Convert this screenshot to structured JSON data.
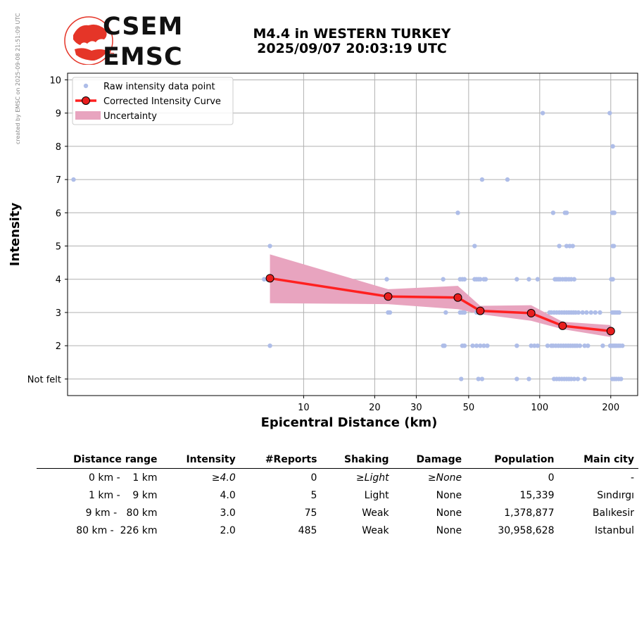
{
  "credit": "created by EMSC on 2025-09-08 21:51:09 UTC",
  "logo": {
    "line1": "CSEM",
    "line2": "EMSC"
  },
  "title": {
    "line1": "M4.4 in WESTERN TURKEY",
    "line2": "2025/09/07 20:03:19 UTC"
  },
  "colors": {
    "raw": "#aebde8",
    "curve": "#ff2020",
    "marker": "#e81e1e",
    "band": "#e8a4bf",
    "grid": "#b0b0b0"
  },
  "chart_data": {
    "type": "scatter",
    "xlabel": "Epicentral Distance (km)",
    "ylabel": "Intensity",
    "xscale": "log",
    "xlim": [
      1,
      260
    ],
    "ylim": [
      0.5,
      10.2
    ],
    "xticks": [
      10,
      20,
      30,
      50,
      100,
      200
    ],
    "yticks": [
      {
        "value": 1,
        "label": "Not felt"
      },
      {
        "value": 2,
        "label": "2"
      },
      {
        "value": 3,
        "label": "3"
      },
      {
        "value": 4,
        "label": "4"
      },
      {
        "value": 5,
        "label": "5"
      },
      {
        "value": 6,
        "label": "6"
      },
      {
        "value": 7,
        "label": "7"
      },
      {
        "value": 8,
        "label": "8"
      },
      {
        "value": 9,
        "label": "9"
      },
      {
        "value": 10,
        "label": "10"
      }
    ],
    "grid": true,
    "legend_position": "top-left",
    "legend": {
      "raw": "Raw intensity data point",
      "curve": "Corrected Intensity Curve",
      "band": "Uncertainty"
    },
    "corrected_curve": {
      "x": [
        7.2,
        22.8,
        45,
        56,
        92,
        125,
        200
      ],
      "y": [
        4.03,
        3.48,
        3.45,
        3.05,
        2.98,
        2.6,
        2.44
      ]
    },
    "uncertainty": {
      "x": [
        7.2,
        22.8,
        45,
        56,
        92,
        125,
        200
      ],
      "upper": [
        4.75,
        3.7,
        3.8,
        3.2,
        3.22,
        2.72,
        2.62
      ],
      "lower": [
        3.28,
        3.25,
        3.1,
        2.95,
        2.75,
        2.5,
        2.26
      ]
    },
    "raw_points": [
      [
        1.06,
        7
      ],
      [
        7.2,
        5
      ],
      [
        7.2,
        2
      ],
      [
        6.8,
        4
      ],
      [
        7.0,
        4
      ],
      [
        22.5,
        4
      ],
      [
        22.8,
        3
      ],
      [
        23.2,
        3
      ],
      [
        39,
        4
      ],
      [
        39,
        2
      ],
      [
        39.5,
        2
      ],
      [
        40,
        3
      ],
      [
        45,
        6
      ],
      [
        46,
        4
      ],
      [
        47,
        4
      ],
      [
        48,
        4
      ],
      [
        46,
        3
      ],
      [
        47,
        3
      ],
      [
        48,
        3
      ],
      [
        46.5,
        1
      ],
      [
        47,
        2
      ],
      [
        48,
        2
      ],
      [
        53,
        5
      ],
      [
        53,
        4
      ],
      [
        54,
        4
      ],
      [
        55,
        4
      ],
      [
        56,
        4
      ],
      [
        58,
        4
      ],
      [
        59,
        4
      ],
      [
        54,
        3
      ],
      [
        55,
        3
      ],
      [
        57,
        3
      ],
      [
        52,
        2
      ],
      [
        54,
        2
      ],
      [
        56,
        2
      ],
      [
        58,
        2
      ],
      [
        60,
        2
      ],
      [
        55,
        1
      ],
      [
        57,
        1
      ],
      [
        57,
        7
      ],
      [
        73,
        7
      ],
      [
        80,
        4
      ],
      [
        80,
        2
      ],
      [
        80,
        1
      ],
      [
        90,
        4
      ],
      [
        90,
        1
      ],
      [
        92,
        2
      ],
      [
        95,
        2
      ],
      [
        98,
        4
      ],
      [
        98,
        2
      ],
      [
        103,
        9
      ],
      [
        110,
        3
      ],
      [
        108,
        2
      ],
      [
        112,
        2
      ],
      [
        114,
        6
      ],
      [
        115,
        1
      ],
      [
        116,
        4
      ],
      [
        118,
        4
      ],
      [
        120,
        4
      ],
      [
        122,
        4
      ],
      [
        125,
        4
      ],
      [
        128,
        4
      ],
      [
        130,
        4
      ],
      [
        133,
        4
      ],
      [
        136,
        4
      ],
      [
        140,
        4
      ],
      [
        121,
        5
      ],
      [
        130,
        5
      ],
      [
        134,
        5
      ],
      [
        138,
        5
      ],
      [
        128,
        6
      ],
      [
        130,
        6
      ],
      [
        112,
        3
      ],
      [
        115,
        3
      ],
      [
        118,
        3
      ],
      [
        121,
        3
      ],
      [
        124,
        3
      ],
      [
        127,
        3
      ],
      [
        130,
        3
      ],
      [
        133,
        3
      ],
      [
        136,
        3
      ],
      [
        139,
        3
      ],
      [
        142,
        3
      ],
      [
        146,
        3
      ],
      [
        152,
        3
      ],
      [
        158,
        3
      ],
      [
        165,
        3
      ],
      [
        172,
        3
      ],
      [
        180,
        3
      ],
      [
        114,
        2
      ],
      [
        117,
        2
      ],
      [
        120,
        2
      ],
      [
        123,
        2
      ],
      [
        126,
        2
      ],
      [
        129,
        2
      ],
      [
        132,
        2
      ],
      [
        135,
        2
      ],
      [
        138,
        2
      ],
      [
        141,
        2
      ],
      [
        144,
        2
      ],
      [
        148,
        2
      ],
      [
        155,
        2
      ],
      [
        160,
        2
      ],
      [
        185,
        2
      ],
      [
        118,
        1
      ],
      [
        121,
        1
      ],
      [
        124,
        1
      ],
      [
        127,
        1
      ],
      [
        130,
        1
      ],
      [
        133,
        1
      ],
      [
        136,
        1
      ],
      [
        140,
        1
      ],
      [
        145,
        1
      ],
      [
        155,
        1
      ],
      [
        198,
        9
      ],
      [
        204,
        8
      ],
      [
        203,
        6
      ],
      [
        205,
        6
      ],
      [
        207,
        6
      ],
      [
        204,
        5
      ],
      [
        206,
        5
      ],
      [
        201,
        4
      ],
      [
        204,
        4
      ],
      [
        203,
        3
      ],
      [
        206,
        3
      ],
      [
        209,
        3
      ],
      [
        213,
        3
      ],
      [
        217,
        3
      ],
      [
        199,
        2
      ],
      [
        202,
        2
      ],
      [
        205,
        2
      ],
      [
        208,
        2
      ],
      [
        211,
        2
      ],
      [
        215,
        2
      ],
      [
        219,
        2
      ],
      [
        224,
        2
      ],
      [
        203,
        1
      ],
      [
        207,
        1
      ],
      [
        211,
        1
      ],
      [
        216,
        1
      ],
      [
        221,
        1
      ]
    ]
  },
  "table": {
    "headers": [
      "Distance range",
      "Intensity",
      "#Reports",
      "Shaking",
      "Damage",
      "Population",
      "Main city"
    ],
    "rows": [
      {
        "range": "0 km -    1 km",
        "intensity": "≥4.0",
        "reports": "0",
        "shaking": "≥Light",
        "damage": "≥None",
        "population": "0",
        "city": "-"
      },
      {
        "range": "1 km -    9 km",
        "intensity": "4.0",
        "reports": "5",
        "shaking": "Light",
        "damage": "None",
        "population": "15,339",
        "city": "Sındırgı"
      },
      {
        "range": "9 km -   80 km",
        "intensity": "3.0",
        "reports": "75",
        "shaking": "Weak",
        "damage": "None",
        "population": "1,378,877",
        "city": "Balıkesir"
      },
      {
        "range": "80 km -  226 km",
        "intensity": "2.0",
        "reports": "485",
        "shaking": "Weak",
        "damage": "None",
        "population": "30,958,628",
        "city": "Istanbul"
      }
    ]
  }
}
